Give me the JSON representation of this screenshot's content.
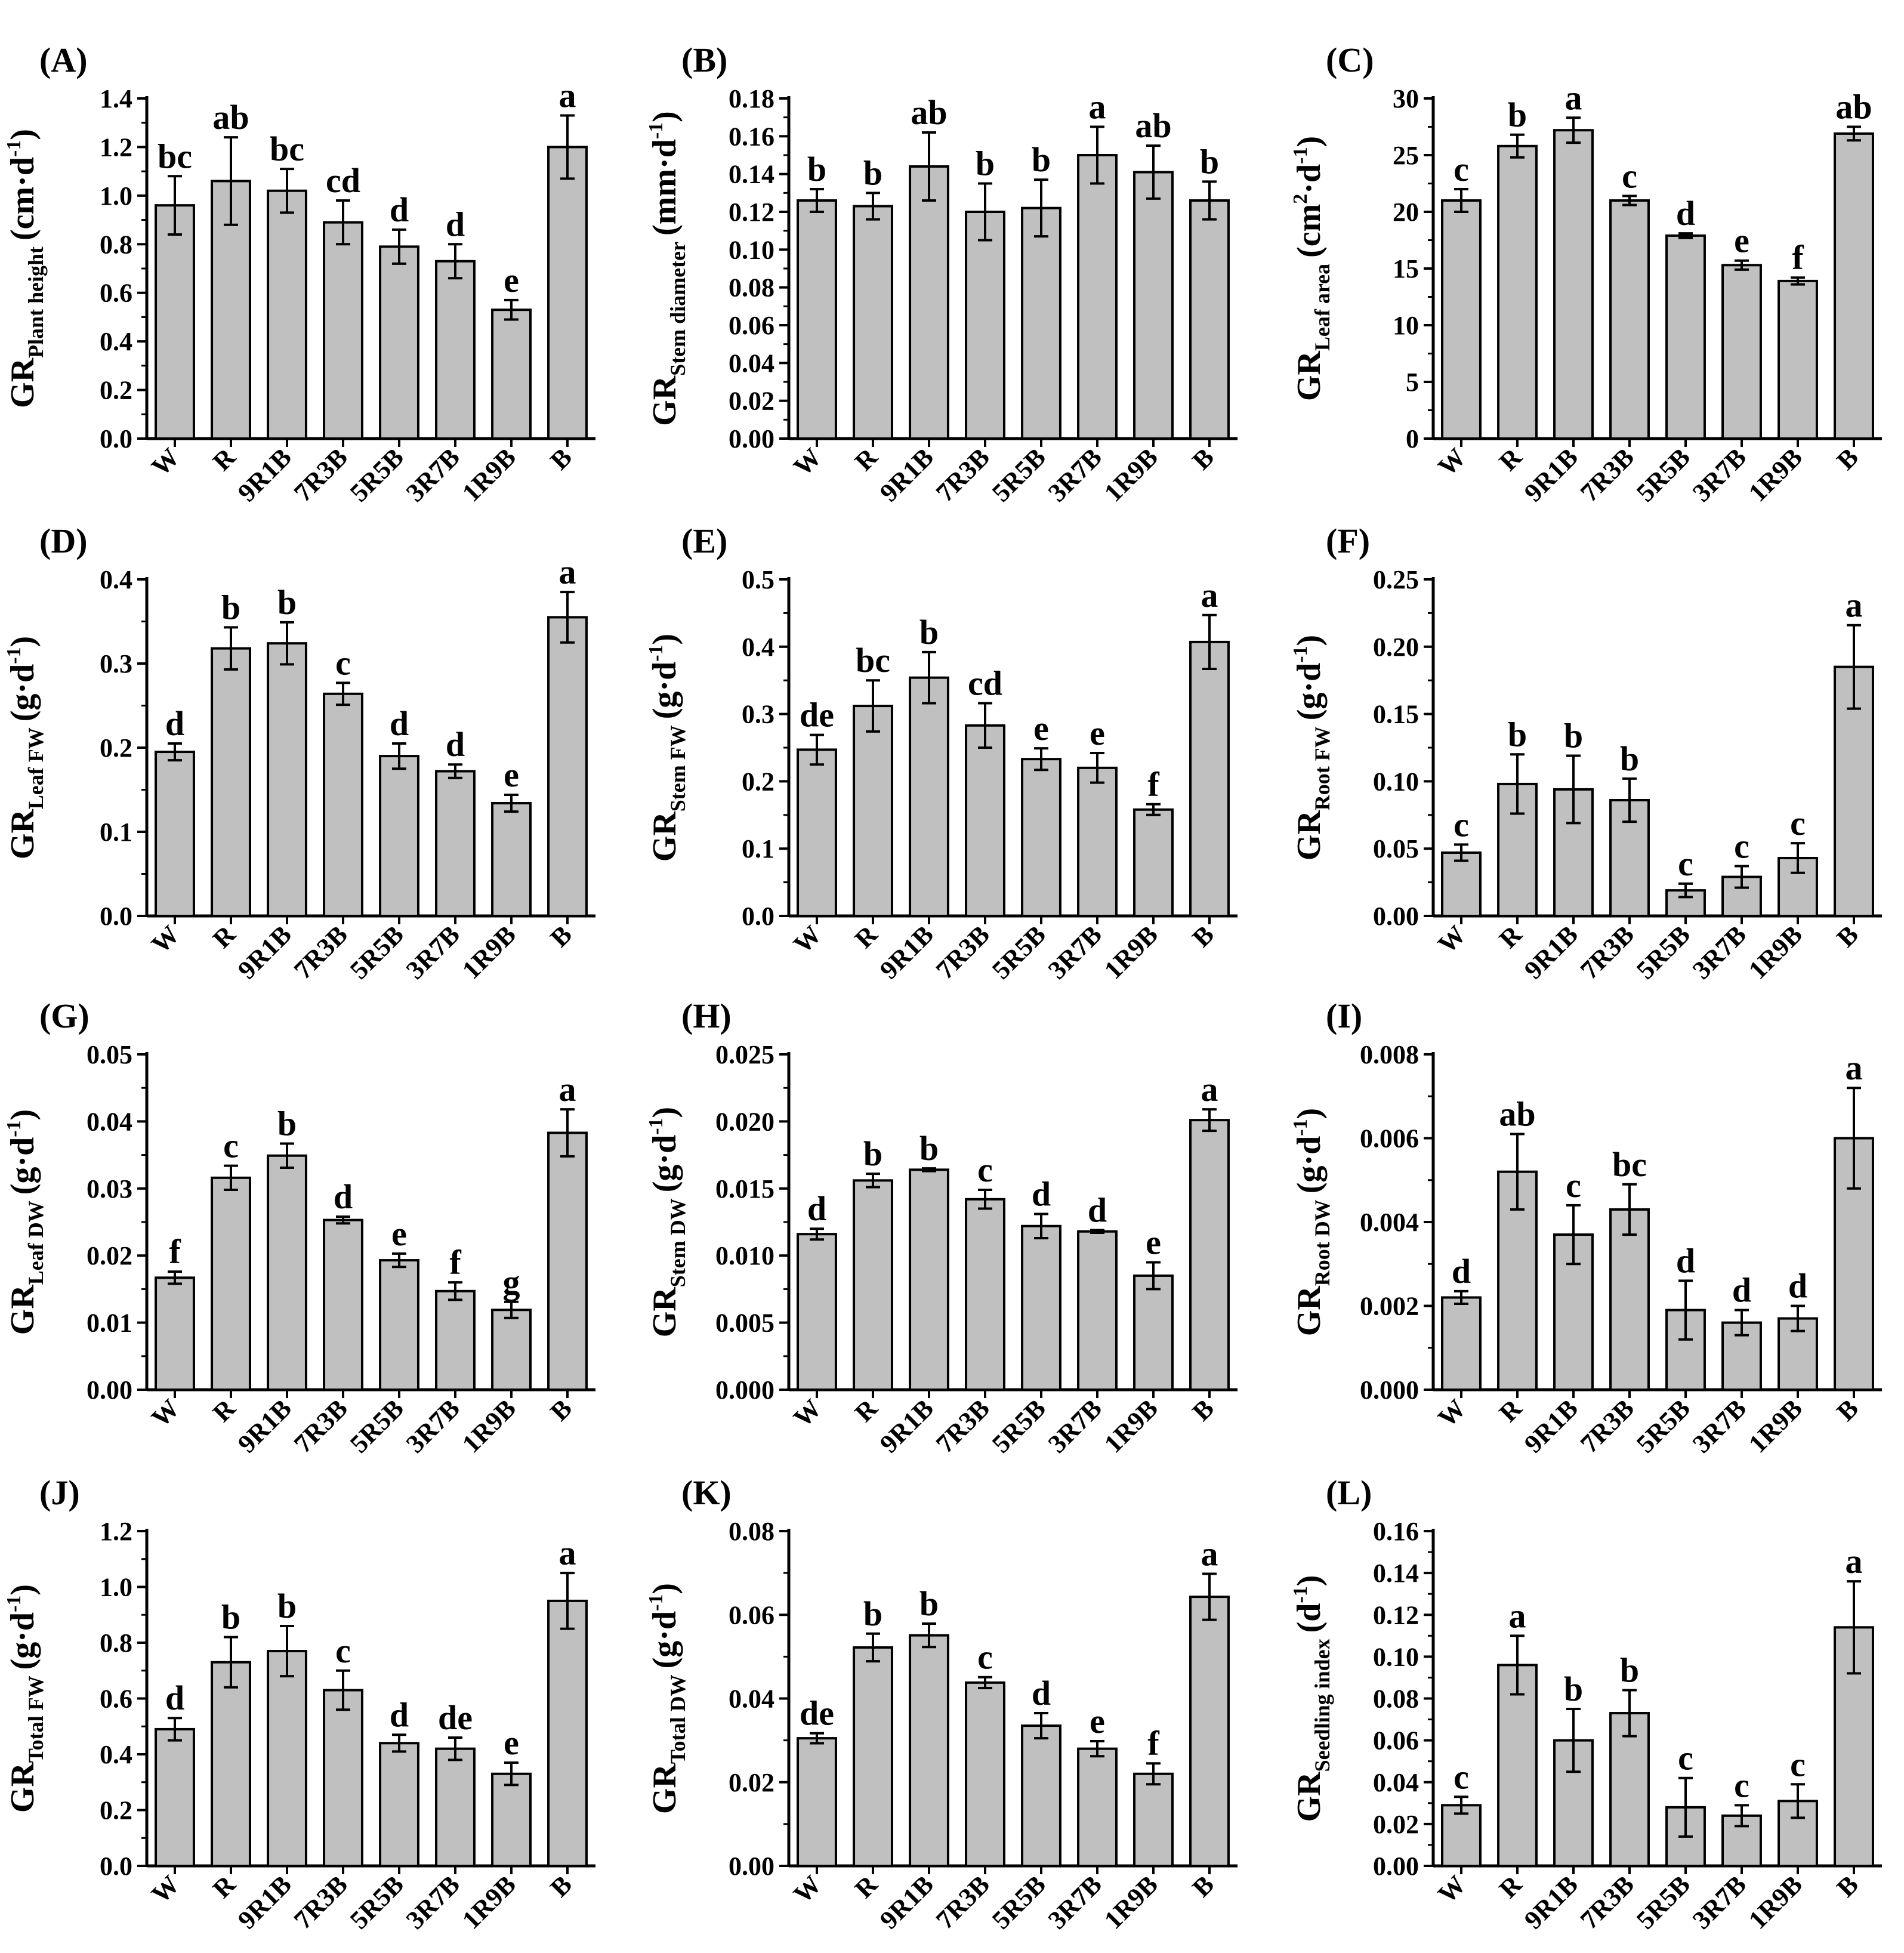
{
  "chart_data": [
    {
      "type": "bar",
      "panel": "(A)",
      "ylabel": "GR",
      "ylabel_sub": "Plant height",
      "ylabel_unit": "(cm·d",
      "ylabel_sup": "-1",
      "ylabel_close": ")",
      "ylim": [
        0,
        1.4
      ],
      "yticks": [
        "0.0",
        "0.2",
        "0.4",
        "0.6",
        "0.8",
        "1.0",
        "1.2",
        "1.4"
      ],
      "categories": [
        "W",
        "R",
        "9R1B",
        "7R3B",
        "5R5B",
        "3R7B",
        "1R9B",
        "B"
      ],
      "values": [
        0.96,
        1.06,
        1.02,
        0.89,
        0.79,
        0.73,
        0.53,
        1.2
      ],
      "errors": [
        0.12,
        0.18,
        0.09,
        0.09,
        0.07,
        0.07,
        0.04,
        0.13
      ],
      "letters": [
        "bc",
        "ab",
        "bc",
        "cd",
        "d",
        "d",
        "e",
        "a"
      ]
    },
    {
      "type": "bar",
      "panel": "(B)",
      "ylabel": "GR",
      "ylabel_sub": "Stem diameter",
      "ylabel_unit": "(mm·d",
      "ylabel_sup": "-1",
      "ylabel_close": ")",
      "ylim": [
        0,
        0.18
      ],
      "yticks": [
        "0.00",
        "0.02",
        "0.04",
        "0.06",
        "0.08",
        "0.10",
        "0.12",
        "0.14",
        "0.16",
        "0.18"
      ],
      "categories": [
        "W",
        "R",
        "9R1B",
        "7R3B",
        "5R5B",
        "3R7B",
        "1R9B",
        "B"
      ],
      "values": [
        0.126,
        0.123,
        0.144,
        0.12,
        0.122,
        0.15,
        0.141,
        0.126
      ],
      "errors": [
        0.006,
        0.007,
        0.018,
        0.015,
        0.015,
        0.015,
        0.014,
        0.01
      ],
      "letters": [
        "b",
        "b",
        "ab",
        "b",
        "b",
        "a",
        "ab",
        "b"
      ]
    },
    {
      "type": "bar",
      "panel": "(C)",
      "ylabel": "GR",
      "ylabel_sub": "Leaf area",
      "ylabel_unit": "(cm",
      "ylabel_sup": "2",
      "ylabel_unit2": "·d",
      "ylabel_sup2": "-1",
      "ylabel_close": ")",
      "ylim": [
        0,
        30
      ],
      "yticks": [
        "0",
        "5",
        "10",
        "15",
        "20",
        "25",
        "30"
      ],
      "categories": [
        "W",
        "R",
        "9R1B",
        "7R3B",
        "5R5B",
        "3R7B",
        "1R9B",
        "B"
      ],
      "values": [
        21.0,
        25.8,
        27.2,
        21.0,
        17.9,
        15.3,
        13.9,
        26.9
      ],
      "errors": [
        1.0,
        1.0,
        1.1,
        0.4,
        0.2,
        0.4,
        0.3,
        0.6
      ],
      "letters": [
        "c",
        "b",
        "a",
        "c",
        "d",
        "e",
        "f",
        "ab"
      ]
    },
    {
      "type": "bar",
      "panel": "(D)",
      "ylabel": "GR",
      "ylabel_sub": "Leaf FW",
      "ylabel_unit": "(g·d",
      "ylabel_sup": "-1",
      "ylabel_close": ")",
      "ylim": [
        0,
        0.4
      ],
      "yticks": [
        "0.0",
        "0.1",
        "0.2",
        "0.3",
        "0.4"
      ],
      "categories": [
        "W",
        "R",
        "9R1B",
        "7R3B",
        "5R5B",
        "3R7B",
        "1R9B",
        "B"
      ],
      "values": [
        0.195,
        0.318,
        0.324,
        0.264,
        0.19,
        0.172,
        0.134,
        0.355
      ],
      "errors": [
        0.01,
        0.025,
        0.025,
        0.013,
        0.015,
        0.008,
        0.01,
        0.03
      ],
      "letters": [
        "d",
        "b",
        "b",
        "c",
        "d",
        "d",
        "e",
        "a"
      ]
    },
    {
      "type": "bar",
      "panel": "(E)",
      "ylabel": "GR",
      "ylabel_sub": "Stem FW",
      "ylabel_unit": "(g·d",
      "ylabel_sup": "-1",
      "ylabel_close": ")",
      "ylim": [
        0,
        0.5
      ],
      "yticks": [
        "0.0",
        "0.1",
        "0.2",
        "0.3",
        "0.4",
        "0.5"
      ],
      "categories": [
        "W",
        "R",
        "9R1B",
        "7R3B",
        "5R5B",
        "3R7B",
        "1R9B",
        "B"
      ],
      "values": [
        0.247,
        0.312,
        0.354,
        0.283,
        0.233,
        0.22,
        0.158,
        0.407
      ],
      "errors": [
        0.022,
        0.038,
        0.038,
        0.033,
        0.016,
        0.022,
        0.008,
        0.04
      ],
      "letters": [
        "de",
        "bc",
        "b",
        "cd",
        "e",
        "e",
        "f",
        "a"
      ]
    },
    {
      "type": "bar",
      "panel": "(F)",
      "ylabel": "GR",
      "ylabel_sub": "Root FW",
      "ylabel_unit": "(g·d",
      "ylabel_sup": "-1",
      "ylabel_close": ")",
      "ylim": [
        0,
        0.25
      ],
      "yticks": [
        "0.00",
        "0.05",
        "0.10",
        "0.15",
        "0.20",
        "0.25"
      ],
      "categories": [
        "W",
        "R",
        "9R1B",
        "7R3B",
        "5R5B",
        "3R7B",
        "1R9B",
        "B"
      ],
      "values": [
        0.047,
        0.098,
        0.094,
        0.086,
        0.019,
        0.029,
        0.043,
        0.185
      ],
      "errors": [
        0.006,
        0.022,
        0.025,
        0.016,
        0.005,
        0.008,
        0.011,
        0.031
      ],
      "letters": [
        "c",
        "b",
        "b",
        "b",
        "c",
        "c",
        "c",
        "a"
      ]
    },
    {
      "type": "bar",
      "panel": "(G)",
      "ylabel": "GR",
      "ylabel_sub": "Leaf DW",
      "ylabel_unit": "(g·d",
      "ylabel_sup": "-1",
      "ylabel_close": ")",
      "ylim": [
        0,
        0.05
      ],
      "yticks": [
        "0.00",
        "0.01",
        "0.02",
        "0.03",
        "0.04",
        "0.05"
      ],
      "categories": [
        "W",
        "R",
        "9R1B",
        "7R3B",
        "5R5B",
        "3R7B",
        "1R9B",
        "B"
      ],
      "values": [
        0.0167,
        0.0316,
        0.0349,
        0.0253,
        0.0193,
        0.0147,
        0.0119,
        0.0383
      ],
      "errors": [
        0.0009,
        0.0018,
        0.0018,
        0.0005,
        0.001,
        0.0013,
        0.0012,
        0.0035
      ],
      "letters": [
        "f",
        "c",
        "b",
        "d",
        "e",
        "f",
        "g",
        "a"
      ]
    },
    {
      "type": "bar",
      "panel": "(H)",
      "ylabel": "GR",
      "ylabel_sub": "Stem DW",
      "ylabel_unit": "(g·d",
      "ylabel_sup": "-1",
      "ylabel_close": ")",
      "ylim": [
        0,
        0.025
      ],
      "yticks": [
        "0.000",
        "0.005",
        "0.010",
        "0.015",
        "0.020",
        "0.025"
      ],
      "categories": [
        "W",
        "R",
        "9R1B",
        "7R3B",
        "5R5B",
        "3R7B",
        "1R9B",
        "B"
      ],
      "values": [
        0.0116,
        0.0156,
        0.0164,
        0.0142,
        0.0122,
        0.0118,
        0.0085,
        0.0201
      ],
      "errors": [
        0.0004,
        0.0005,
        0.0001,
        0.0007,
        0.0009,
        0.0001,
        0.001,
        0.0008
      ],
      "letters": [
        "d",
        "b",
        "b",
        "c",
        "d",
        "d",
        "e",
        "a"
      ]
    },
    {
      "type": "bar",
      "panel": "(I)",
      "ylabel": "GR",
      "ylabel_sub": "Root DW",
      "ylabel_unit": "(g·d",
      "ylabel_sup": "-1",
      "ylabel_close": ")",
      "ylim": [
        0,
        0.008
      ],
      "yticks": [
        "0.000",
        "0.002",
        "0.004",
        "0.006",
        "0.008"
      ],
      "categories": [
        "W",
        "R",
        "9R1B",
        "7R3B",
        "5R5B",
        "3R7B",
        "1R9B",
        "B"
      ],
      "values": [
        0.0022,
        0.0052,
        0.0037,
        0.0043,
        0.0019,
        0.0016,
        0.0017,
        0.006
      ],
      "errors": [
        0.00015,
        0.0009,
        0.0007,
        0.0006,
        0.0007,
        0.0003,
        0.0003,
        0.0012
      ],
      "letters": [
        "d",
        "ab",
        "c",
        "bc",
        "d",
        "d",
        "d",
        "a"
      ]
    },
    {
      "type": "bar",
      "panel": "(J)",
      "ylabel": "GR",
      "ylabel_sub": "Total FW",
      "ylabel_unit": "(g·d",
      "ylabel_sup": "-1",
      "ylabel_close": ")",
      "ylim": [
        0,
        1.2
      ],
      "yticks": [
        "0.0",
        "0.2",
        "0.4",
        "0.6",
        "0.8",
        "1.0",
        "1.2"
      ],
      "categories": [
        "W",
        "R",
        "9R1B",
        "7R3B",
        "5R5B",
        "3R7B",
        "1R9B",
        "B"
      ],
      "values": [
        0.49,
        0.73,
        0.77,
        0.63,
        0.44,
        0.42,
        0.33,
        0.95
      ],
      "errors": [
        0.04,
        0.09,
        0.09,
        0.07,
        0.03,
        0.04,
        0.04,
        0.1
      ],
      "letters": [
        "d",
        "b",
        "b",
        "c",
        "d",
        "de",
        "e",
        "a"
      ]
    },
    {
      "type": "bar",
      "panel": "(K)",
      "ylabel": "GR",
      "ylabel_sub": "Total DW",
      "ylabel_unit": "(g·d",
      "ylabel_sup": "-1",
      "ylabel_close": ")",
      "ylim": [
        0,
        0.08
      ],
      "yticks": [
        "0.00",
        "0.02",
        "0.04",
        "0.06",
        "0.08"
      ],
      "categories": [
        "W",
        "R",
        "9R1B",
        "7R3B",
        "5R5B",
        "3R7B",
        "1R9B",
        "B"
      ],
      "values": [
        0.0305,
        0.0522,
        0.0551,
        0.0438,
        0.0335,
        0.028,
        0.022,
        0.0643
      ],
      "errors": [
        0.0012,
        0.0033,
        0.0028,
        0.0013,
        0.003,
        0.0018,
        0.0025,
        0.0055
      ],
      "letters": [
        "de",
        "b",
        "b",
        "c",
        "d",
        "e",
        "f",
        "a"
      ]
    },
    {
      "type": "bar",
      "panel": "(L)",
      "ylabel": "GR",
      "ylabel_sub": "Seedling index",
      "ylabel_unit": "(d",
      "ylabel_sup": "-1",
      "ylabel_close": ")",
      "ylim": [
        0,
        0.16
      ],
      "yticks": [
        "0.00",
        "0.02",
        "0.04",
        "0.06",
        "0.08",
        "0.10",
        "0.12",
        "0.14",
        "0.16"
      ],
      "categories": [
        "W",
        "R",
        "9R1B",
        "7R3B",
        "5R5B",
        "3R7B",
        "1R9B",
        "B"
      ],
      "values": [
        0.029,
        0.096,
        0.06,
        0.073,
        0.028,
        0.024,
        0.031,
        0.114
      ],
      "errors": [
        0.004,
        0.014,
        0.015,
        0.011,
        0.014,
        0.005,
        0.008,
        0.022
      ],
      "letters": [
        "c",
        "a",
        "b",
        "b",
        "c",
        "c",
        "c",
        "a"
      ]
    }
  ]
}
